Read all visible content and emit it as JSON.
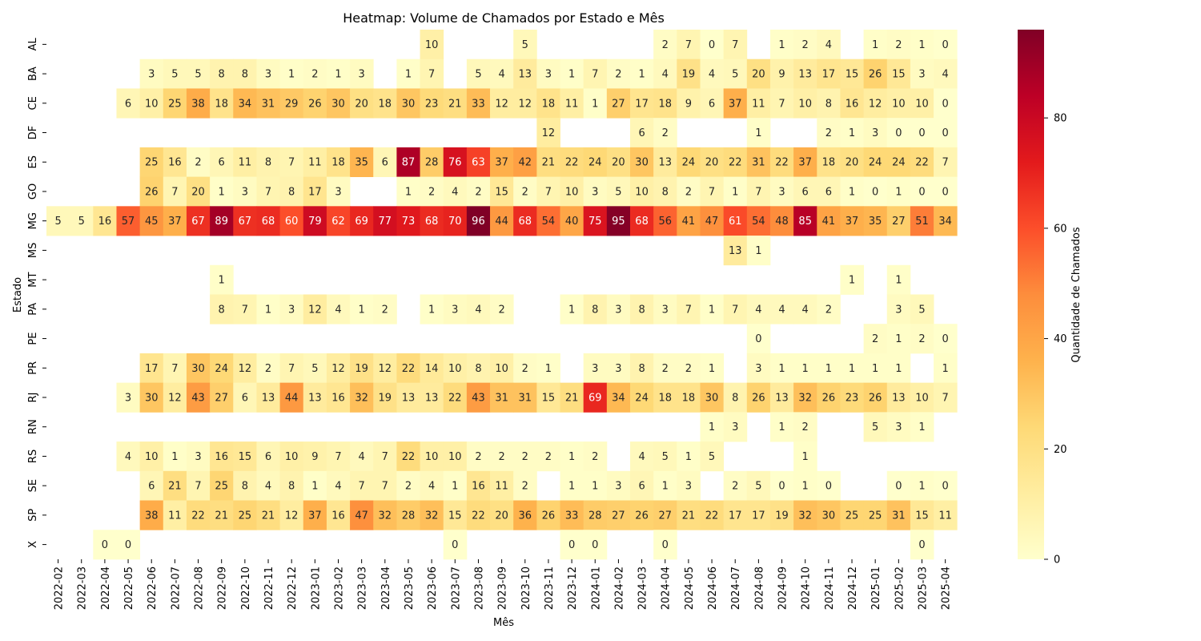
{
  "chart_data": {
    "type": "heatmap",
    "title": "Heatmap: Volume de Chamados por Estado e Mês",
    "xlabel": "Mês",
    "ylabel": "Estado",
    "x": [
      "2022-02",
      "2022-03",
      "2022-04",
      "2022-05",
      "2022-06",
      "2022-07",
      "2022-08",
      "2022-09",
      "2022-10",
      "2022-11",
      "2022-12",
      "2023-01",
      "2023-02",
      "2023-03",
      "2023-04",
      "2023-05",
      "2023-06",
      "2023-07",
      "2023-08",
      "2023-09",
      "2023-10",
      "2023-11",
      "2023-12",
      "2024-01",
      "2024-02",
      "2024-03",
      "2024-04",
      "2024-05",
      "2024-06",
      "2024-07",
      "2024-08",
      "2024-09",
      "2024-10",
      "2024-11",
      "2024-12",
      "2025-01",
      "2025-02",
      "2025-03",
      "2025-04"
    ],
    "y": [
      "AL",
      "BA",
      "CE",
      "DF",
      "ES",
      "GO",
      "MG",
      "MS",
      "MT",
      "PA",
      "PE",
      "PR",
      "RJ",
      "RN",
      "RS",
      "SE",
      "SP",
      "X"
    ],
    "values": [
      [
        null,
        null,
        null,
        null,
        null,
        null,
        null,
        null,
        null,
        null,
        null,
        null,
        null,
        null,
        null,
        null,
        10,
        null,
        null,
        null,
        5,
        null,
        null,
        null,
        null,
        null,
        2,
        7,
        0,
        7,
        null,
        1,
        2,
        4,
        null,
        1,
        2,
        1,
        0
      ],
      [
        null,
        null,
        null,
        null,
        3,
        5,
        5,
        8,
        8,
        3,
        1,
        2,
        1,
        3,
        null,
        1,
        7,
        null,
        5,
        4,
        13,
        3,
        1,
        7,
        2,
        1,
        4,
        19,
        4,
        5,
        20,
        9,
        13,
        17,
        15,
        26,
        15,
        3,
        4
      ],
      [
        null,
        null,
        null,
        6,
        10,
        25,
        38,
        18,
        34,
        31,
        29,
        26,
        30,
        20,
        18,
        30,
        23,
        21,
        33,
        12,
        12,
        18,
        11,
        1,
        27,
        17,
        18,
        9,
        6,
        37,
        11,
        7,
        10,
        8,
        16,
        12,
        10,
        10,
        0
      ],
      [
        null,
        null,
        null,
        null,
        null,
        null,
        null,
        null,
        null,
        null,
        null,
        null,
        null,
        null,
        null,
        null,
        null,
        null,
        null,
        null,
        null,
        12,
        null,
        null,
        null,
        6,
        2,
        null,
        null,
        null,
        1,
        null,
        null,
        2,
        1,
        3,
        0,
        0,
        0
      ],
      [
        null,
        null,
        null,
        null,
        25,
        16,
        2,
        6,
        11,
        8,
        7,
        11,
        18,
        35,
        6,
        87,
        28,
        76,
        63,
        37,
        42,
        21,
        22,
        24,
        20,
        30,
        13,
        24,
        20,
        22,
        31,
        22,
        37,
        18,
        20,
        24,
        24,
        22,
        7
      ],
      [
        null,
        null,
        null,
        null,
        26,
        7,
        20,
        1,
        3,
        7,
        8,
        17,
        3,
        null,
        null,
        1,
        2,
        4,
        2,
        15,
        2,
        7,
        10,
        3,
        5,
        10,
        8,
        2,
        7,
        1,
        7,
        3,
        6,
        6,
        1,
        0,
        1,
        0,
        0
      ],
      [
        5,
        5,
        16,
        57,
        45,
        37,
        67,
        89,
        67,
        68,
        60,
        79,
        62,
        69,
        77,
        73,
        68,
        70,
        96,
        44,
        68,
        54,
        40,
        75,
        95,
        68,
        56,
        41,
        47,
        61,
        54,
        48,
        85,
        41,
        37,
        35,
        27,
        51,
        34
      ],
      [
        null,
        null,
        null,
        null,
        null,
        null,
        null,
        null,
        null,
        null,
        null,
        null,
        null,
        null,
        null,
        null,
        null,
        null,
        null,
        null,
        null,
        null,
        null,
        null,
        null,
        null,
        null,
        null,
        null,
        13,
        1,
        null,
        null,
        null,
        null,
        null,
        null,
        null,
        null
      ],
      [
        null,
        null,
        null,
        null,
        null,
        null,
        null,
        1,
        null,
        null,
        null,
        null,
        null,
        null,
        null,
        null,
        null,
        null,
        null,
        null,
        null,
        null,
        null,
        null,
        null,
        null,
        null,
        null,
        null,
        null,
        null,
        null,
        null,
        null,
        1,
        null,
        1,
        null,
        null
      ],
      [
        null,
        null,
        null,
        null,
        null,
        null,
        null,
        8,
        7,
        1,
        3,
        12,
        4,
        1,
        2,
        null,
        1,
        3,
        4,
        2,
        null,
        null,
        1,
        8,
        3,
        8,
        3,
        7,
        1,
        7,
        4,
        4,
        4,
        2,
        null,
        null,
        3,
        5,
        null
      ],
      [
        null,
        null,
        null,
        null,
        null,
        null,
        null,
        null,
        null,
        null,
        null,
        null,
        null,
        null,
        null,
        null,
        null,
        null,
        null,
        null,
        null,
        null,
        null,
        null,
        null,
        null,
        null,
        null,
        null,
        null,
        0,
        null,
        null,
        null,
        null,
        2,
        1,
        2,
        0
      ],
      [
        null,
        null,
        null,
        null,
        17,
        7,
        30,
        24,
        12,
        2,
        7,
        5,
        12,
        19,
        12,
        22,
        14,
        10,
        8,
        10,
        2,
        1,
        null,
        3,
        3,
        8,
        2,
        2,
        1,
        null,
        3,
        1,
        1,
        1,
        1,
        1,
        1,
        null,
        1
      ],
      [
        null,
        null,
        null,
        3,
        30,
        12,
        43,
        27,
        6,
        13,
        44,
        13,
        16,
        32,
        19,
        13,
        13,
        22,
        43,
        31,
        31,
        15,
        21,
        69,
        34,
        24,
        18,
        18,
        30,
        8,
        26,
        13,
        32,
        26,
        23,
        26,
        13,
        10,
        7
      ],
      [
        null,
        null,
        null,
        null,
        null,
        null,
        null,
        null,
        null,
        null,
        null,
        null,
        null,
        null,
        null,
        null,
        null,
        null,
        null,
        null,
        null,
        null,
        null,
        null,
        null,
        null,
        null,
        null,
        1,
        3,
        null,
        1,
        2,
        null,
        null,
        5,
        3,
        1,
        null
      ],
      [
        null,
        null,
        null,
        4,
        10,
        1,
        3,
        16,
        15,
        6,
        10,
        9,
        7,
        4,
        7,
        22,
        10,
        10,
        2,
        2,
        2,
        2,
        1,
        2,
        null,
        4,
        5,
        1,
        5,
        null,
        null,
        null,
        1,
        null,
        null,
        null,
        null,
        null,
        null
      ],
      [
        null,
        null,
        null,
        null,
        6,
        21,
        7,
        25,
        8,
        4,
        8,
        1,
        4,
        7,
        7,
        2,
        4,
        1,
        16,
        11,
        2,
        null,
        1,
        1,
        3,
        6,
        1,
        3,
        null,
        2,
        5,
        0,
        1,
        0,
        null,
        null,
        0,
        1,
        0
      ],
      [
        null,
        null,
        null,
        null,
        38,
        11,
        22,
        21,
        25,
        21,
        12,
        37,
        16,
        47,
        32,
        28,
        32,
        15,
        22,
        20,
        36,
        26,
        33,
        28,
        27,
        26,
        27,
        21,
        22,
        17,
        17,
        19,
        32,
        30,
        25,
        25,
        31,
        15,
        11
      ],
      [
        null,
        null,
        0,
        0,
        null,
        null,
        null,
        null,
        null,
        null,
        null,
        null,
        null,
        null,
        null,
        null,
        null,
        0,
        null,
        null,
        null,
        null,
        0,
        0,
        null,
        null,
        0,
        null,
        null,
        null,
        null,
        null,
        null,
        null,
        null,
        null,
        null,
        0,
        null
      ]
    ],
    "vmin": 0,
    "vmax": 96,
    "colormap": "YlOrRd",
    "annotate": true,
    "colorbar": {
      "label": "Quantidade de Chamados",
      "ticks": [
        0,
        20,
        40,
        60,
        80
      ]
    }
  }
}
